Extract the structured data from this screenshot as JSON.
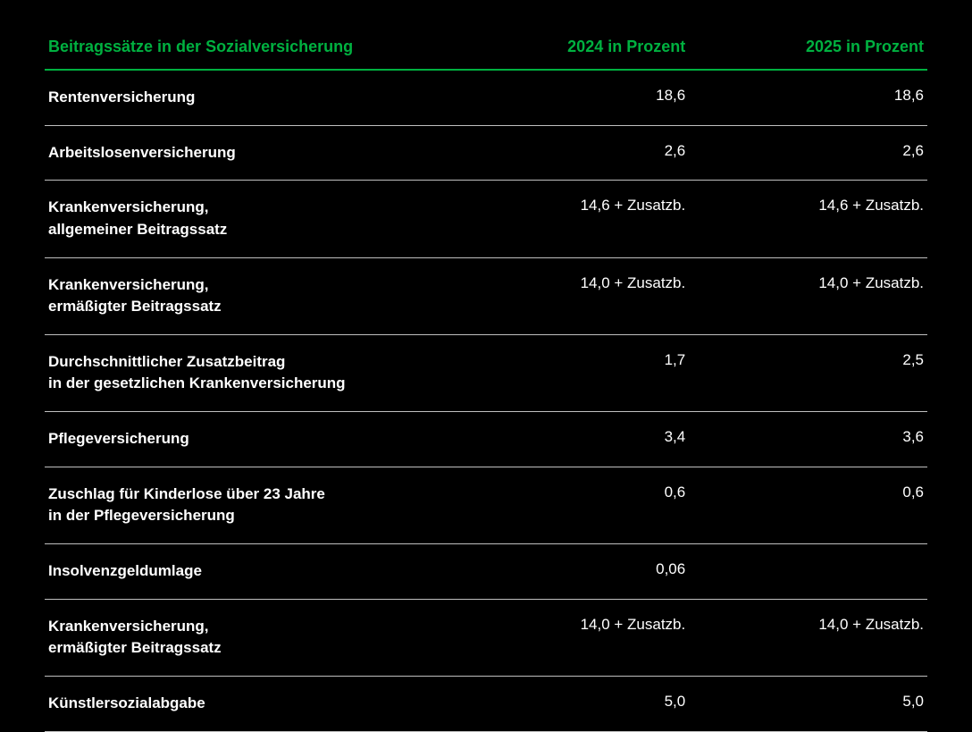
{
  "table": {
    "background_color": "#000000",
    "header_color": "#00b140",
    "text_color": "#ffffff",
    "row_border_color": "#bfbfbf",
    "header_border_color": "#00b140",
    "header_fontsize": 18,
    "body_fontsize": 17,
    "columns": [
      "Beitragssätze in der Sozialversicherung",
      "2024 in Prozent",
      "2025 in Prozent"
    ],
    "rows": [
      {
        "label": "Rentenversicherung",
        "v2024": "18,6",
        "v2025": "18,6"
      },
      {
        "label": "Arbeitslosenversicherung",
        "v2024": "2,6",
        "v2025": "2,6"
      },
      {
        "label": "Krankenversicherung,\nallgemeiner Beitragssatz",
        "v2024": "14,6 + Zusatzb.",
        "v2025": "14,6 + Zusatzb."
      },
      {
        "label": "Krankenversicherung,\nermäßigter Beitragssatz",
        "v2024": "14,0 + Zusatzb.",
        "v2025": "14,0 + Zusatzb."
      },
      {
        "label": "Durchschnittlicher Zusatzbeitrag\nin der gesetzlichen Krankenversicherung",
        "v2024": "1,7",
        "v2025": "2,5"
      },
      {
        "label": "Pflegeversicherung",
        "v2024": "3,4",
        "v2025": "3,6"
      },
      {
        "label": "Zuschlag für Kinderlose über 23 Jahre\nin der Pflegeversicherung",
        "v2024": "0,6",
        "v2025": "0,6"
      },
      {
        "label": "Insolvenzgeldumlage",
        "v2024": "0,06",
        "v2025": ""
      },
      {
        "label": "Krankenversicherung,\nermäßigter Beitragssatz",
        "v2024": "14,0 + Zusatzb.",
        "v2025": "14,0 + Zusatzb."
      },
      {
        "label": "Künstlersozialabgabe",
        "v2024": "5,0",
        "v2025": "5,0"
      }
    ]
  }
}
